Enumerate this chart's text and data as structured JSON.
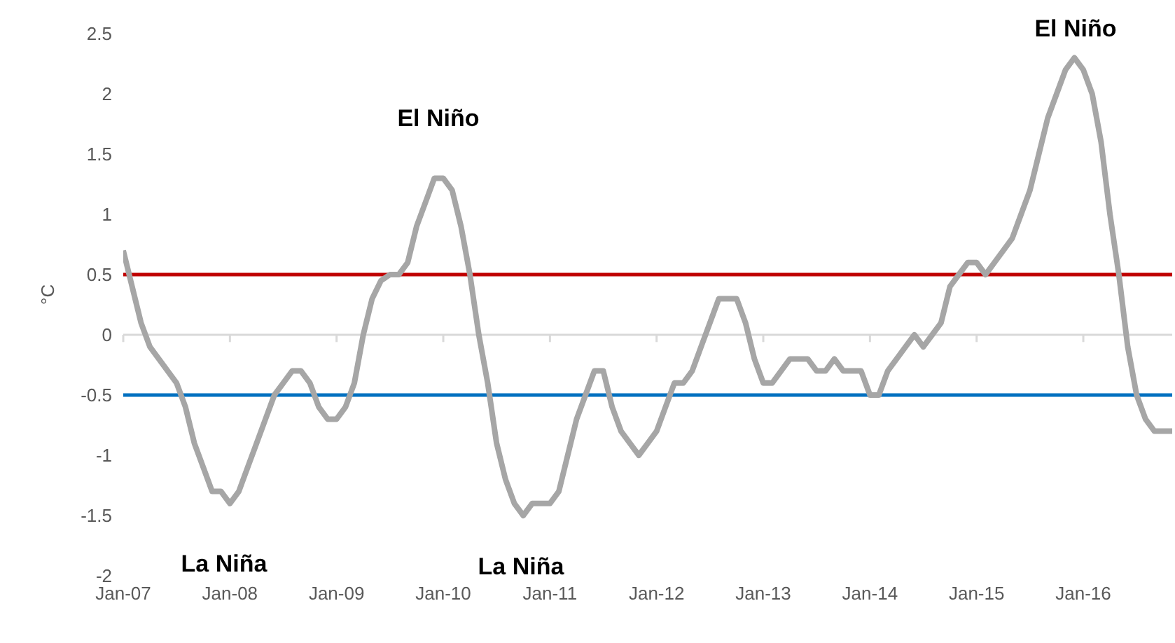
{
  "chart_data": {
    "type": "line",
    "ylabel": "°C",
    "categories": [
      "Jan-07",
      null,
      null,
      null,
      null,
      null,
      null,
      null,
      null,
      null,
      null,
      null,
      "Jan-08",
      null,
      null,
      null,
      null,
      null,
      null,
      null,
      null,
      null,
      null,
      null,
      "Jan-09",
      null,
      null,
      null,
      null,
      null,
      null,
      null,
      null,
      null,
      null,
      null,
      "Jan-10",
      null,
      null,
      null,
      null,
      null,
      null,
      null,
      null,
      null,
      null,
      null,
      "Jan-11",
      null,
      null,
      null,
      null,
      null,
      null,
      null,
      null,
      null,
      null,
      null,
      "Jan-12",
      null,
      null,
      null,
      null,
      null,
      null,
      null,
      null,
      null,
      null,
      null,
      "Jan-13",
      null,
      null,
      null,
      null,
      null,
      null,
      null,
      null,
      null,
      null,
      null,
      "Jan-14",
      null,
      null,
      null,
      null,
      null,
      null,
      null,
      null,
      null,
      null,
      null,
      "Jan-15",
      null,
      null,
      null,
      null,
      null,
      null,
      null,
      null,
      null,
      null,
      null,
      "Jan-16",
      null,
      null,
      null,
      null,
      null,
      null,
      null,
      null,
      null,
      null
    ],
    "series": [
      {
        "color": "#a6a6a6",
        "values": [
          0.7,
          0.4,
          0.1,
          -0.1,
          -0.2,
          -0.3,
          -0.4,
          -0.6,
          -0.9,
          -1.1,
          -1.3,
          -1.3,
          -1.4,
          -1.3,
          -1.1,
          -0.9,
          -0.7,
          -0.5,
          -0.4,
          -0.3,
          -0.3,
          -0.4,
          -0.6,
          -0.7,
          -0.7,
          -0.6,
          -0.4,
          0.0,
          0.3,
          0.45,
          0.5,
          0.5,
          0.6,
          0.9,
          1.1,
          1.3,
          1.3,
          1.2,
          0.9,
          0.5,
          0.0,
          -0.4,
          -0.9,
          -1.2,
          -1.4,
          -1.5,
          -1.4,
          -1.4,
          -1.4,
          -1.3,
          -1.0,
          -0.7,
          -0.5,
          -0.3,
          -0.3,
          -0.6,
          -0.8,
          -0.9,
          -1.0,
          -0.9,
          -0.8,
          -0.6,
          -0.4,
          -0.4,
          -0.3,
          -0.1,
          0.1,
          0.3,
          0.3,
          0.3,
          0.1,
          -0.2,
          -0.4,
          -0.4,
          -0.3,
          -0.2,
          -0.2,
          -0.2,
          -0.3,
          -0.3,
          -0.2,
          -0.3,
          -0.3,
          -0.3,
          -0.5,
          -0.5,
          -0.3,
          -0.2,
          -0.1,
          0.0,
          -0.1,
          0.0,
          0.1,
          0.4,
          0.5,
          0.6,
          0.6,
          0.5,
          0.6,
          0.7,
          0.8,
          1.0,
          1.2,
          1.5,
          1.8,
          2.0,
          2.2,
          2.3,
          2.2,
          2.0,
          1.6,
          1.0,
          0.5,
          -0.1,
          -0.5,
          -0.7,
          -0.8,
          -0.8,
          -0.8
        ]
      }
    ],
    "ylim": [
      -2,
      2.5
    ],
    "yticks": [
      -2,
      -1.5,
      -1,
      -0.5,
      0,
      0.5,
      1,
      1.5,
      2,
      2.5
    ],
    "grid": false,
    "legend": false,
    "marker": "none",
    "line_style": "solid",
    "ref_lines": [
      {
        "axis": "y",
        "value": 0.5,
        "color": "#c00000"
      },
      {
        "axis": "y",
        "value": -0.5,
        "color": "#0070c0"
      }
    ],
    "annotations": [
      "El Niño",
      "El Niño",
      "La Niña",
      "La Niña"
    ]
  }
}
